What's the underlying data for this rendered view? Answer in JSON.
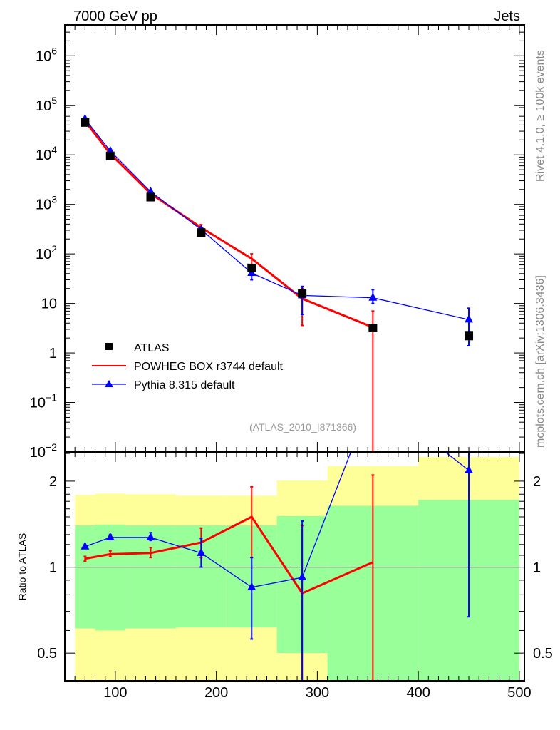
{
  "header": {
    "left": "7000 GeV pp",
    "right": "Jets"
  },
  "side_labels": {
    "rivet": "Rivet 4.1.0, ≥ 100k events",
    "mcplots": "mcplots.cern.ch [arXiv:1306.3436]"
  },
  "analysis_id": "(ATLAS_2010_I871366)",
  "colors": {
    "data": "#000000",
    "powheg": "#ff0000",
    "pythia": "#0000ff",
    "band_green": "#99ff99",
    "band_yellow": "#ffff99",
    "watermark": "#999999"
  },
  "chart_data": [
    {
      "type": "line",
      "panel": "main",
      "yscale": "log",
      "xlim": [
        50,
        505
      ],
      "ylim": [
        0.01,
        4200000
      ],
      "ytick_labels": [
        {
          "value": 1000000,
          "base": "10",
          "exp": "6"
        },
        {
          "value": 100000,
          "base": "10",
          "exp": "5"
        },
        {
          "value": 10000,
          "base": "10",
          "exp": "4"
        },
        {
          "value": 1000,
          "base": "10",
          "exp": "3"
        },
        {
          "value": 100,
          "base": "10",
          "exp": "2"
        },
        {
          "value": 10,
          "base": "10",
          "exp": ""
        },
        {
          "value": 1,
          "base": "1",
          "exp": ""
        },
        {
          "value": 0.1,
          "base": "10",
          "exp": "−1"
        },
        {
          "value": 0.01,
          "base": "10",
          "exp": "−2"
        }
      ],
      "legend": [
        "ATLAS",
        "POWHEG BOX r3744 default",
        "Pythia 8.315 default"
      ],
      "legend_position": "bottom-left",
      "x": [
        70,
        95,
        135,
        185,
        235,
        285,
        355,
        450
      ],
      "series": [
        {
          "name": "ATLAS",
          "marker": "square",
          "values": [
            45000,
            9500,
            1400,
            270,
            52,
            16,
            3.2,
            2.2
          ]
        },
        {
          "name": "POWHEG BOX r3744 default",
          "marker": "none",
          "values": [
            48000,
            10500,
            1650,
            340,
            80,
            12.5,
            3.3,
            null
          ],
          "err_lo": [
            null,
            null,
            null,
            300,
            60,
            3.6,
            0.001,
            null
          ],
          "err_hi": [
            null,
            null,
            null,
            390,
            100,
            20,
            7,
            null
          ]
        },
        {
          "name": "Pythia 8.315 default",
          "marker": "triangle",
          "values": [
            53000,
            12000,
            1800,
            310,
            41,
            14.5,
            13,
            4.7
          ],
          "err_lo": [
            null,
            null,
            null,
            null,
            30,
            6,
            10,
            1.4
          ],
          "err_hi": [
            null,
            null,
            null,
            null,
            50,
            22,
            19,
            8
          ]
        }
      ]
    },
    {
      "type": "line",
      "panel": "ratio",
      "yscale": "log",
      "ylabel": "Ratio to ATLAS",
      "xlim": [
        50,
        505
      ],
      "ylim": [
        0.4,
        2.53
      ],
      "xtick_labels": [
        "100",
        "200",
        "300",
        "400",
        "500"
      ],
      "xticks": [
        100,
        200,
        300,
        400,
        500
      ],
      "ytick_labels": [
        "2",
        "1",
        "0.5"
      ],
      "yticks": [
        2,
        1,
        0.5
      ],
      "bins": [
        [
          60,
          80
        ],
        [
          80,
          110
        ],
        [
          110,
          160
        ],
        [
          160,
          210
        ],
        [
          210,
          260
        ],
        [
          260,
          310
        ],
        [
          310,
          400
        ],
        [
          400,
          500
        ]
      ],
      "band_green": {
        "lo": [
          0.61,
          0.6,
          0.61,
          0.615,
          0.615,
          0.5,
          0.4,
          0.4
        ],
        "hi": [
          1.4,
          1.41,
          1.4,
          1.4,
          1.4,
          1.51,
          1.64,
          1.72
        ]
      },
      "band_yellow": {
        "lo": [
          0.4,
          0.4,
          0.4,
          0.4,
          0.4,
          0.4,
          null,
          null
        ],
        "hi": [
          1.79,
          1.81,
          1.8,
          1.78,
          1.78,
          2.01,
          2.26,
          2.43
        ]
      },
      "x": [
        70,
        95,
        135,
        185,
        235,
        285,
        355,
        450
      ],
      "series": [
        {
          "name": "POWHEG BOX r3744 default",
          "values": [
            1.07,
            1.11,
            1.12,
            1.22,
            1.5,
            0.81,
            1.04,
            null
          ],
          "err_lo": [
            1.05,
            1.09,
            1.08,
            1.08,
            1.08,
            0.3,
            0.3,
            null
          ],
          "err_hi": [
            1.09,
            1.14,
            1.17,
            1.37,
            1.91,
            1.4,
            2.1,
            null
          ]
        },
        {
          "name": "Pythia 8.315 default",
          "values": [
            1.18,
            1.27,
            1.27,
            1.12,
            0.85,
            0.92,
            4.0,
            2.18
          ],
          "err_lo": [
            null,
            1.25,
            1.24,
            1.0,
            0.56,
            0.3,
            null,
            0.67
          ],
          "err_hi": [
            null,
            1.3,
            1.32,
            1.26,
            1.08,
            1.45,
            null,
            2.6
          ]
        }
      ]
    }
  ]
}
